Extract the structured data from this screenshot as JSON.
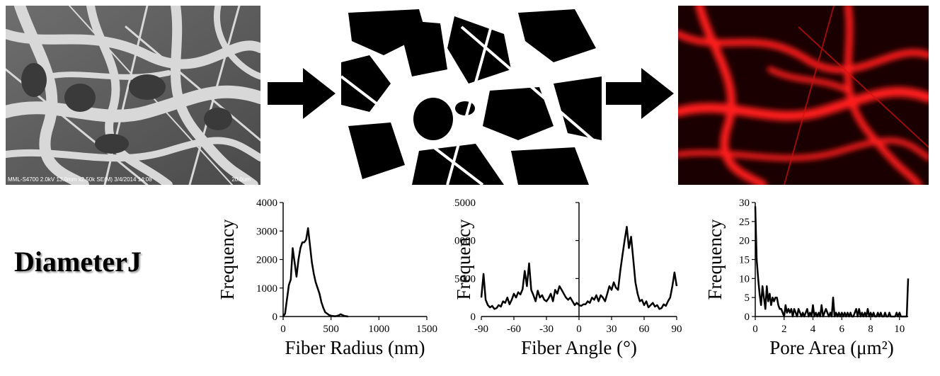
{
  "sem_image": {
    "caption": "MML-S4700 2.0kV 13.0mm x2.50k SE(M) 3/4/2014 14:08",
    "scale_label": "20.0um"
  },
  "brand": {
    "title": "DiameterJ"
  },
  "chart_data": [
    {
      "type": "line",
      "xlabel": "Fiber Radius (nm)",
      "ylabel": "Frequency",
      "xlim": [
        0,
        1500
      ],
      "ylim": [
        0,
        4000
      ],
      "xticks": [
        0,
        500,
        1000,
        1500
      ],
      "yticks": [
        0,
        1000,
        2000,
        3000,
        4000
      ],
      "x": [
        0,
        20,
        40,
        60,
        80,
        100,
        120,
        140,
        160,
        180,
        200,
        220,
        240,
        260,
        280,
        300,
        320,
        340,
        360,
        380,
        400,
        420,
        440,
        460,
        480,
        500,
        520,
        540,
        560,
        580,
        600,
        620,
        640,
        660,
        680
      ],
      "y": [
        0,
        100,
        600,
        1100,
        1300,
        2400,
        1900,
        1400,
        2000,
        2400,
        2600,
        2600,
        2700,
        3100,
        2500,
        1900,
        1500,
        1200,
        1000,
        800,
        500,
        300,
        150,
        100,
        50,
        30,
        20,
        10,
        20,
        40,
        80,
        50,
        20,
        10,
        0
      ],
      "grid": false,
      "legend": "none"
    },
    {
      "type": "line",
      "xlabel": "Fiber Angle (°)",
      "ylabel": "Frequency",
      "xlim": [
        -90,
        90
      ],
      "ylim": [
        0,
        15000
      ],
      "xticks": [
        -90,
        -60,
        -30,
        0,
        30,
        60,
        90
      ],
      "yticks": [
        0,
        5000,
        10000,
        15000
      ],
      "x": [
        -90,
        -88,
        -86,
        -84,
        -82,
        -80,
        -78,
        -76,
        -74,
        -72,
        -70,
        -68,
        -66,
        -64,
        -62,
        -60,
        -58,
        -56,
        -54,
        -52,
        -50,
        -48,
        -46,
        -44,
        -42,
        -40,
        -38,
        -36,
        -34,
        -32,
        -30,
        -28,
        -26,
        -24,
        -22,
        -20,
        -18,
        -16,
        -14,
        -12,
        -10,
        -8,
        -6,
        -4,
        -2,
        0,
        2,
        4,
        6,
        8,
        10,
        12,
        14,
        16,
        18,
        20,
        22,
        24,
        26,
        28,
        30,
        32,
        34,
        36,
        38,
        40,
        42,
        44,
        46,
        48,
        50,
        52,
        54,
        56,
        58,
        60,
        62,
        64,
        66,
        68,
        70,
        72,
        74,
        76,
        78,
        80,
        82,
        84,
        86,
        88,
        90
      ],
      "y": [
        2500,
        5600,
        2200,
        1500,
        1200,
        1400,
        1000,
        1100,
        1500,
        1300,
        2000,
        1800,
        2500,
        1600,
        2200,
        3000,
        2500,
        3200,
        2900,
        3600,
        6000,
        4000,
        7000,
        3500,
        2800,
        2000,
        3400,
        2500,
        2800,
        2200,
        2000,
        2400,
        3000,
        2000,
        3500,
        3000,
        4000,
        3500,
        3000,
        2500,
        2200,
        2500,
        2000,
        1500,
        1800,
        1500,
        1400,
        1600,
        1600,
        2000,
        1800,
        2500,
        2200,
        2800,
        2000,
        2800,
        2500,
        2000,
        3000,
        4000,
        3500,
        4500,
        3800,
        3500,
        6000,
        8000,
        10000,
        11800,
        9000,
        10500,
        7500,
        4500,
        3000,
        2000,
        2200,
        1500,
        2000,
        1200,
        1500,
        1800,
        1300,
        1500,
        1000,
        1100,
        1600,
        1400,
        2000,
        2500,
        4000,
        5800,
        4000
      ],
      "grid": false,
      "legend": "none"
    },
    {
      "type": "line",
      "xlabel": "Pore Area (μm²)",
      "ylabel": "Frequency",
      "xlim": [
        0,
        10.6
      ],
      "ylim": [
        0,
        30
      ],
      "xticks": [
        0,
        2,
        4,
        6,
        8,
        10
      ],
      "yticks": [
        0,
        5,
        10,
        15,
        20,
        25,
        30
      ],
      "x": [
        0,
        0.1,
        0.2,
        0.3,
        0.4,
        0.5,
        0.6,
        0.7,
        0.8,
        0.9,
        1.0,
        1.1,
        1.2,
        1.3,
        1.4,
        1.5,
        1.6,
        1.7,
        1.8,
        1.9,
        2.0,
        2.1,
        2.2,
        2.3,
        2.4,
        2.5,
        2.6,
        2.7,
        2.8,
        2.9,
        3.0,
        3.1,
        3.2,
        3.3,
        3.4,
        3.5,
        3.6,
        3.7,
        3.8,
        3.9,
        4.0,
        4.1,
        4.2,
        4.3,
        4.4,
        4.5,
        4.6,
        4.7,
        4.8,
        4.9,
        5.0,
        5.1,
        5.2,
        5.3,
        5.4,
        5.5,
        5.6,
        5.7,
        5.8,
        5.9,
        6.0,
        6.1,
        6.2,
        6.3,
        6.4,
        6.5,
        6.6,
        6.7,
        6.8,
        6.9,
        7.0,
        7.1,
        7.2,
        7.3,
        7.4,
        7.5,
        7.6,
        7.7,
        7.8,
        7.9,
        8.0,
        8.1,
        8.2,
        8.3,
        8.4,
        8.5,
        8.6,
        8.7,
        8.8,
        8.9,
        9.0,
        9.1,
        9.2,
        9.3,
        9.4,
        9.5,
        9.6,
        9.7,
        9.8,
        9.9,
        10.0,
        10.1,
        10.2,
        10.3,
        10.4,
        10.5,
        10.6
      ],
      "y": [
        29,
        15,
        10,
        6,
        3,
        8,
        5,
        2,
        8,
        4,
        6,
        3,
        5,
        4,
        5,
        5,
        3,
        2,
        2,
        1,
        0,
        3,
        1,
        2,
        1,
        2,
        0,
        2,
        1,
        0,
        2,
        1,
        0,
        1,
        0,
        1,
        2,
        0,
        1,
        0,
        3,
        0,
        1,
        0,
        1,
        0,
        3,
        0,
        1,
        2,
        1,
        0,
        1,
        0,
        5,
        0,
        1,
        0,
        1,
        0,
        1,
        0,
        1,
        0,
        1,
        0,
        1,
        0,
        0,
        1,
        2,
        0,
        2,
        0,
        1,
        0,
        1,
        0,
        2,
        0,
        1,
        0,
        1,
        0,
        0,
        1,
        0,
        1,
        0,
        0,
        1,
        0,
        0,
        1,
        0,
        0,
        0,
        0,
        1,
        0,
        1,
        0,
        0,
        0,
        0,
        0,
        10
      ],
      "grid": false,
      "legend": "none"
    }
  ]
}
